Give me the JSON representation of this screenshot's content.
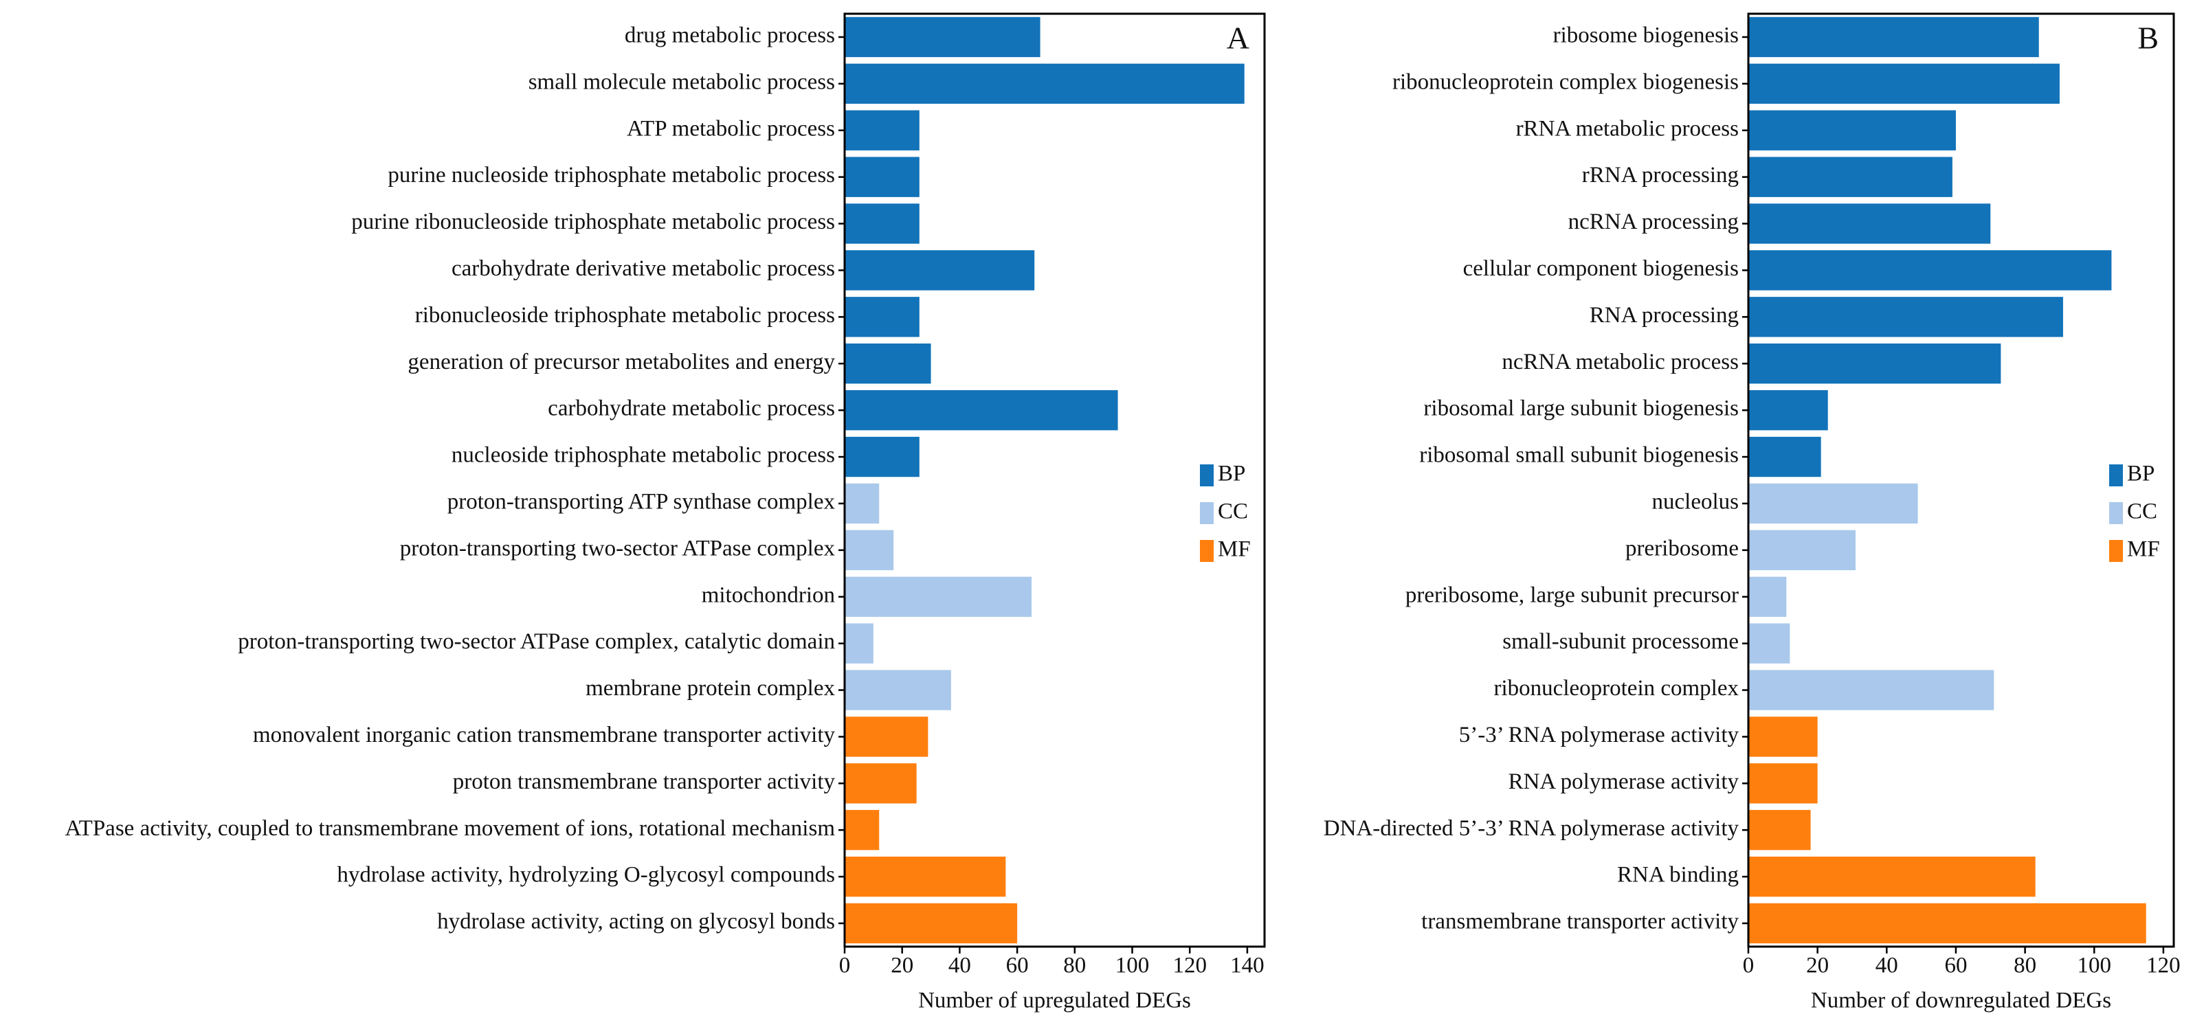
{
  "chart_data": [
    {
      "type": "barh",
      "panel_label": "A",
      "xlabel": "Number of upregulated DEGs",
      "categories": [
        "drug metabolic process",
        "small molecule metabolic process",
        "ATP metabolic process",
        "purine nucleoside triphosphate metabolic process",
        "purine ribonucleoside triphosphate metabolic process",
        "carbohydrate derivative metabolic process",
        "ribonucleoside triphosphate metabolic process",
        "generation of precursor metabolites and energy",
        "carbohydrate metabolic process",
        "nucleoside triphosphate metabolic process",
        "proton-transporting ATP synthase complex",
        "proton-transporting two-sector ATPase complex",
        "mitochondrion",
        "proton-transporting two-sector ATPase complex, catalytic domain",
        "membrane protein complex",
        "monovalent inorganic cation transmembrane transporter activity",
        "proton transmembrane transporter activity",
        "ATPase activity, coupled to transmembrane movement of ions, rotational mechanism",
        "hydrolase activity, hydrolyzing O-glycosyl compounds",
        "hydrolase activity, acting on glycosyl bonds"
      ],
      "series": [
        {
          "name": "BP",
          "color": "#1273b9",
          "values": [
            68,
            139,
            26,
            26,
            26,
            66,
            26,
            30,
            95,
            26,
            null,
            null,
            null,
            null,
            null,
            null,
            null,
            null,
            null,
            null
          ]
        },
        {
          "name": "CC",
          "color": "#a9c8eb",
          "values": [
            null,
            null,
            null,
            null,
            null,
            null,
            null,
            null,
            null,
            null,
            12,
            17,
            65,
            10,
            37,
            null,
            null,
            null,
            null,
            null
          ]
        },
        {
          "name": "MF",
          "color": "#ff7f0e",
          "values": [
            null,
            null,
            null,
            null,
            null,
            null,
            null,
            null,
            null,
            null,
            null,
            null,
            null,
            null,
            null,
            29,
            25,
            12,
            56,
            60
          ]
        }
      ],
      "xlim": [
        0,
        146
      ],
      "xticks": [
        0,
        20,
        40,
        60,
        80,
        100,
        120,
        140
      ],
      "legend": "right"
    },
    {
      "type": "barh",
      "panel_label": "B",
      "xlabel": "Number of downregulated DEGs",
      "categories": [
        "ribosome biogenesis",
        "ribonucleoprotein complex biogenesis",
        "rRNA metabolic process",
        "rRNA processing",
        "ncRNA processing",
        "cellular component biogenesis",
        "RNA processing",
        "ncRNA metabolic process",
        "ribosomal large subunit biogenesis",
        "ribosomal small subunit biogenesis",
        "nucleolus",
        "preribosome",
        "preribosome, large subunit precursor",
        "small-subunit processome",
        "ribonucleoprotein complex",
        "5’-3’ RNA polymerase activity",
        "RNA polymerase activity",
        "DNA-directed 5’-3’ RNA polymerase activity",
        "RNA binding",
        "transmembrane transporter activity"
      ],
      "series": [
        {
          "name": "BP",
          "color": "#1273b9",
          "values": [
            84,
            90,
            60,
            59,
            70,
            105,
            91,
            73,
            23,
            21,
            null,
            null,
            null,
            null,
            null,
            null,
            null,
            null,
            null,
            null
          ]
        },
        {
          "name": "CC",
          "color": "#a9c8eb",
          "values": [
            null,
            null,
            null,
            null,
            null,
            null,
            null,
            null,
            null,
            null,
            49,
            31,
            11,
            12,
            71,
            null,
            null,
            null,
            null,
            null
          ]
        },
        {
          "name": "MF",
          "color": "#ff7f0e",
          "values": [
            null,
            null,
            null,
            null,
            null,
            null,
            null,
            null,
            null,
            null,
            null,
            null,
            null,
            null,
            null,
            20,
            20,
            18,
            83,
            115
          ]
        }
      ],
      "xlim": [
        0,
        123
      ],
      "xticks": [
        0,
        20,
        40,
        60,
        80,
        100,
        120
      ],
      "legend": "right"
    }
  ]
}
